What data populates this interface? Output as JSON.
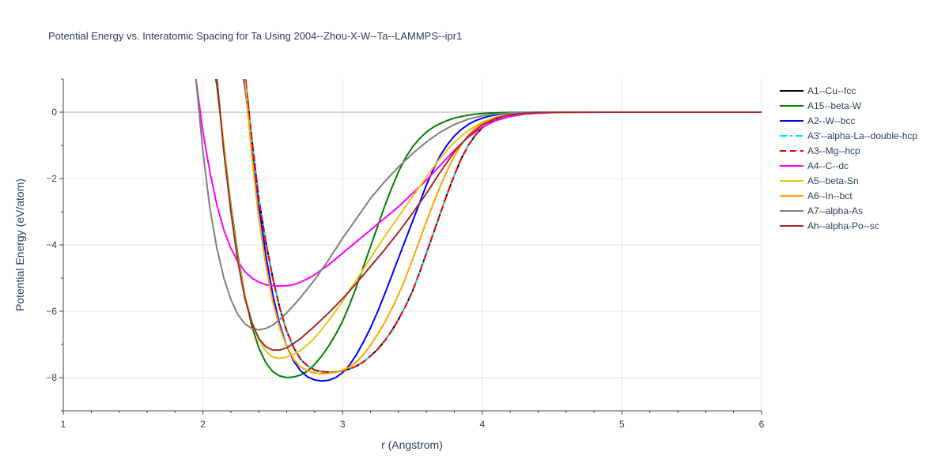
{
  "chart_data": {
    "type": "line",
    "title": "Potential Energy vs. Interatomic Spacing for Ta Using 2004--Zhou-X-W--Ta--LAMMPS--ipr1",
    "xlabel": "r (Angstrom)",
    "ylabel": "Potential Energy (eV/atom)",
    "xlim": [
      1,
      6
    ],
    "ylim": [
      -9,
      1
    ],
    "xticks": [
      1,
      2,
      3,
      4,
      5,
      6
    ],
    "yticks": [
      0,
      -2,
      -4,
      -6,
      -8
    ],
    "xtick_labels": [
      "1",
      "2",
      "3",
      "4",
      "5",
      "6"
    ],
    "ytick_labels": [
      "0",
      "−2",
      "−4",
      "−6",
      "−8"
    ],
    "grid": true,
    "legend_position": "right",
    "series": [
      {
        "name": "A1--Cu--fcc",
        "color": "#000000",
        "dash": "solid",
        "x": [
          2.3,
          2.35,
          2.4,
          2.45,
          2.5,
          2.55,
          2.6,
          2.65,
          2.7,
          2.75,
          2.8,
          2.85,
          2.9,
          2.95,
          3.0,
          3.05,
          3.1,
          3.15,
          3.2,
          3.25,
          3.3,
          3.35,
          3.4,
          3.45,
          3.5,
          3.55,
          3.6,
          3.65,
          3.7,
          3.75,
          3.8,
          3.85,
          3.9,
          3.95,
          4.0,
          4.05,
          4.1,
          4.15,
          4.2,
          4.25,
          4.3,
          4.35,
          4.4,
          4.45,
          4.5,
          4.55,
          4.6,
          4.7,
          4.8,
          5.0,
          5.5,
          6.0
        ],
        "y": [
          1.2,
          -0.8,
          -2.6,
          -3.9,
          -5.0,
          -5.9,
          -6.6,
          -7.1,
          -7.45,
          -7.65,
          -7.77,
          -7.82,
          -7.84,
          -7.83,
          -7.8,
          -7.74,
          -7.65,
          -7.52,
          -7.35,
          -7.15,
          -6.9,
          -6.6,
          -6.25,
          -5.85,
          -5.4,
          -4.85,
          -4.25,
          -3.65,
          -3.05,
          -2.45,
          -1.9,
          -1.4,
          -1.0,
          -0.7,
          -0.47,
          -0.31,
          -0.2,
          -0.13,
          -0.08,
          -0.05,
          -0.03,
          -0.02,
          -0.012,
          -0.007,
          -0.004,
          -0.002,
          -0.001,
          0,
          0,
          0,
          0,
          0
        ]
      },
      {
        "name": "A15--beta-W",
        "color": "#008000",
        "dash": "solid",
        "x": [
          2.0,
          2.05,
          2.1,
          2.15,
          2.2,
          2.25,
          2.3,
          2.35,
          2.4,
          2.45,
          2.5,
          2.55,
          2.6,
          2.65,
          2.7,
          2.75,
          2.8,
          2.85,
          2.9,
          2.95,
          3.0,
          3.05,
          3.1,
          3.15,
          3.2,
          3.25,
          3.3,
          3.35,
          3.4,
          3.45,
          3.5,
          3.55,
          3.6,
          3.65,
          3.7,
          3.75,
          3.8,
          3.85,
          3.9,
          3.95,
          4.0,
          4.05,
          4.1,
          4.15,
          4.2,
          4.3,
          4.4,
          4.5,
          4.6,
          4.8,
          5.0,
          5.5,
          6.0
        ],
        "y": [
          3.0,
          2.0,
          0.8,
          -1.0,
          -2.8,
          -4.3,
          -5.5,
          -6.45,
          -7.1,
          -7.55,
          -7.82,
          -7.95,
          -8.0,
          -7.98,
          -7.92,
          -7.8,
          -7.6,
          -7.35,
          -7.05,
          -6.7,
          -6.3,
          -5.8,
          -5.25,
          -4.65,
          -4.05,
          -3.45,
          -2.85,
          -2.3,
          -1.8,
          -1.38,
          -1.05,
          -0.8,
          -0.6,
          -0.45,
          -0.34,
          -0.25,
          -0.18,
          -0.13,
          -0.09,
          -0.06,
          -0.04,
          -0.028,
          -0.02,
          -0.014,
          -0.01,
          -0.005,
          -0.002,
          -0.001,
          0,
          0,
          0,
          0,
          0
        ]
      },
      {
        "name": "A2--W--bcc",
        "color": "#0000ff",
        "dash": "solid",
        "x": [
          2.2,
          2.25,
          2.3,
          2.35,
          2.4,
          2.45,
          2.5,
          2.55,
          2.6,
          2.65,
          2.7,
          2.75,
          2.8,
          2.85,
          2.9,
          2.95,
          3.0,
          3.05,
          3.1,
          3.15,
          3.2,
          3.25,
          3.3,
          3.35,
          3.4,
          3.45,
          3.5,
          3.55,
          3.6,
          3.65,
          3.7,
          3.75,
          3.8,
          3.85,
          3.9,
          3.95,
          4.0,
          4.05,
          4.1,
          4.15,
          4.2,
          4.3,
          4.4,
          4.5,
          4.6,
          4.8,
          5.0,
          5.5,
          6.0
        ],
        "y": [
          3.0,
          2.0,
          0.8,
          -1.0,
          -2.8,
          -4.3,
          -5.5,
          -6.4,
          -7.05,
          -7.5,
          -7.8,
          -7.98,
          -8.07,
          -8.1,
          -8.08,
          -8.0,
          -7.85,
          -7.62,
          -7.3,
          -6.92,
          -6.5,
          -6.02,
          -5.5,
          -4.95,
          -4.4,
          -3.85,
          -3.3,
          -2.75,
          -2.2,
          -1.72,
          -1.3,
          -0.98,
          -0.72,
          -0.52,
          -0.37,
          -0.26,
          -0.18,
          -0.12,
          -0.08,
          -0.05,
          -0.035,
          -0.015,
          -0.006,
          -0.002,
          0,
          0,
          0,
          0,
          0
        ]
      },
      {
        "name": "A3'--alpha-La--double-hcp",
        "color": "#00e5ee",
        "dash": "dashdot",
        "x": [
          2.3,
          2.35,
          2.4,
          2.45,
          2.5,
          2.55,
          2.6,
          2.65,
          2.7,
          2.75,
          2.8,
          2.85,
          2.9,
          2.95,
          3.0,
          3.05,
          3.1,
          3.15,
          3.2,
          3.25,
          3.3,
          3.35,
          3.4,
          3.45,
          3.5,
          3.55,
          3.6,
          3.65,
          3.7,
          3.75,
          3.8,
          3.85,
          3.9,
          3.95,
          4.0,
          4.05,
          4.1,
          4.15,
          4.2,
          4.25,
          4.3,
          4.35,
          4.4,
          4.45,
          4.5,
          4.55,
          4.6,
          4.7,
          4.8,
          5.0,
          5.5,
          6.0
        ],
        "y": [
          1.2,
          -0.8,
          -2.6,
          -3.9,
          -5.0,
          -5.9,
          -6.6,
          -7.1,
          -7.45,
          -7.65,
          -7.77,
          -7.82,
          -7.84,
          -7.83,
          -7.8,
          -7.74,
          -7.65,
          -7.52,
          -7.35,
          -7.15,
          -6.9,
          -6.6,
          -6.25,
          -5.85,
          -5.4,
          -4.85,
          -4.25,
          -3.65,
          -3.05,
          -2.45,
          -1.9,
          -1.4,
          -1.0,
          -0.7,
          -0.47,
          -0.31,
          -0.2,
          -0.13,
          -0.08,
          -0.05,
          -0.03,
          -0.02,
          -0.012,
          -0.007,
          -0.004,
          -0.002,
          -0.001,
          0,
          0,
          0,
          0,
          0
        ]
      },
      {
        "name": "A3--Mg--hcp",
        "color": "#ff0000",
        "dash": "dash",
        "x": [
          2.3,
          2.35,
          2.4,
          2.45,
          2.5,
          2.55,
          2.6,
          2.65,
          2.7,
          2.75,
          2.8,
          2.85,
          2.9,
          2.95,
          3.0,
          3.05,
          3.1,
          3.15,
          3.2,
          3.25,
          3.3,
          3.35,
          3.4,
          3.45,
          3.5,
          3.55,
          3.6,
          3.65,
          3.7,
          3.75,
          3.8,
          3.85,
          3.9,
          3.95,
          4.0,
          4.05,
          4.1,
          4.15,
          4.2,
          4.25,
          4.3,
          4.35,
          4.4,
          4.45,
          4.5,
          4.55,
          4.6,
          4.7,
          4.8,
          5.0,
          5.5,
          6.0
        ],
        "y": [
          1.2,
          -0.8,
          -2.6,
          -3.9,
          -5.0,
          -5.9,
          -6.6,
          -7.1,
          -7.45,
          -7.65,
          -7.77,
          -7.82,
          -7.84,
          -7.83,
          -7.8,
          -7.74,
          -7.65,
          -7.52,
          -7.35,
          -7.15,
          -6.9,
          -6.6,
          -6.25,
          -5.85,
          -5.4,
          -4.85,
          -4.25,
          -3.65,
          -3.05,
          -2.45,
          -1.9,
          -1.4,
          -1.0,
          -0.7,
          -0.47,
          -0.31,
          -0.2,
          -0.13,
          -0.08,
          -0.05,
          -0.03,
          -0.02,
          -0.012,
          -0.007,
          -0.004,
          -0.002,
          -0.001,
          0,
          0,
          0,
          0,
          0
        ]
      },
      {
        "name": "A4--C--dc",
        "color": "#ff00ff",
        "dash": "solid",
        "x": [
          1.95,
          2.0,
          2.05,
          2.1,
          2.15,
          2.2,
          2.25,
          2.3,
          2.35,
          2.4,
          2.45,
          2.5,
          2.55,
          2.6,
          2.65,
          2.7,
          2.75,
          2.8,
          2.9,
          3.0,
          3.1,
          3.2,
          3.3,
          3.4,
          3.5,
          3.6,
          3.7,
          3.8,
          3.9,
          4.0,
          4.1,
          4.2,
          4.3,
          4.4,
          4.5,
          4.6,
          4.8,
          5.0,
          5.5,
          6.0
        ],
        "y": [
          1.0,
          -0.6,
          -1.8,
          -2.8,
          -3.55,
          -4.1,
          -4.5,
          -4.8,
          -5.0,
          -5.12,
          -5.2,
          -5.23,
          -5.24,
          -5.23,
          -5.2,
          -5.12,
          -5.02,
          -4.9,
          -4.6,
          -4.25,
          -3.9,
          -3.55,
          -3.2,
          -2.85,
          -2.45,
          -2.05,
          -1.6,
          -1.15,
          -0.75,
          -0.45,
          -0.25,
          -0.13,
          -0.06,
          -0.03,
          -0.015,
          -0.007,
          -0.002,
          0,
          0,
          0
        ]
      },
      {
        "name": "A5--beta-Sn",
        "color": "#e6c619",
        "dash": "solid",
        "x": [
          2.05,
          2.1,
          2.15,
          2.2,
          2.25,
          2.3,
          2.35,
          2.4,
          2.45,
          2.5,
          2.55,
          2.6,
          2.65,
          2.7,
          2.75,
          2.8,
          2.85,
          2.9,
          2.95,
          3.0,
          3.1,
          3.2,
          3.3,
          3.4,
          3.5,
          3.6,
          3.7,
          3.8,
          3.9,
          4.0,
          4.1,
          4.2,
          4.3,
          4.4,
          4.5,
          4.6,
          4.8,
          5.0,
          5.5,
          6.0
        ],
        "y": [
          3.0,
          1.0,
          -1.0,
          -2.9,
          -4.4,
          -5.5,
          -6.3,
          -6.85,
          -7.2,
          -7.38,
          -7.42,
          -7.38,
          -7.3,
          -7.18,
          -7.0,
          -6.8,
          -6.55,
          -6.28,
          -6.0,
          -5.7,
          -5.05,
          -4.4,
          -3.75,
          -3.15,
          -2.55,
          -1.95,
          -1.38,
          -0.9,
          -0.55,
          -0.3,
          -0.15,
          -0.07,
          -0.03,
          -0.015,
          -0.007,
          -0.003,
          -0.001,
          0,
          0,
          0
        ]
      },
      {
        "name": "A6--In--bct",
        "color": "#ffa500",
        "dash": "solid",
        "x": [
          2.25,
          2.3,
          2.35,
          2.4,
          2.45,
          2.5,
          2.55,
          2.6,
          2.65,
          2.7,
          2.75,
          2.8,
          2.85,
          2.9,
          2.95,
          3.0,
          3.05,
          3.1,
          3.15,
          3.2,
          3.25,
          3.3,
          3.35,
          3.4,
          3.45,
          3.5,
          3.55,
          3.6,
          3.65,
          3.7,
          3.75,
          3.8,
          3.85,
          3.9,
          3.95,
          4.0,
          4.1,
          4.2,
          4.3,
          4.4,
          4.5,
          4.6,
          4.8,
          5.0,
          5.5,
          6.0
        ],
        "y": [
          3.0,
          1.0,
          -1.3,
          -3.2,
          -4.6,
          -5.7,
          -6.5,
          -7.05,
          -7.45,
          -7.68,
          -7.8,
          -7.86,
          -7.88,
          -7.87,
          -7.84,
          -7.78,
          -7.68,
          -7.52,
          -7.3,
          -7.02,
          -6.7,
          -6.35,
          -5.95,
          -5.5,
          -5.0,
          -4.45,
          -3.88,
          -3.3,
          -2.75,
          -2.22,
          -1.75,
          -1.33,
          -0.98,
          -0.7,
          -0.48,
          -0.33,
          -0.15,
          -0.07,
          -0.03,
          -0.012,
          -0.005,
          -0.002,
          0,
          0,
          0,
          0
        ]
      },
      {
        "name": "A7--alpha-As",
        "color": "#808080",
        "dash": "solid",
        "x": [
          1.95,
          2.0,
          2.05,
          2.1,
          2.15,
          2.2,
          2.25,
          2.3,
          2.35,
          2.4,
          2.45,
          2.5,
          2.55,
          2.6,
          2.65,
          2.7,
          2.8,
          2.9,
          3.0,
          3.1,
          3.2,
          3.3,
          3.4,
          3.5,
          3.6,
          3.7,
          3.8,
          3.9,
          4.0,
          4.1,
          4.2,
          4.3,
          4.4,
          4.5,
          4.6,
          4.8,
          5.0,
          5.5,
          6.0
        ],
        "y": [
          1.0,
          -1.2,
          -2.9,
          -4.1,
          -5.0,
          -5.65,
          -6.1,
          -6.38,
          -6.52,
          -6.56,
          -6.52,
          -6.42,
          -6.25,
          -6.05,
          -5.82,
          -5.58,
          -5.05,
          -4.45,
          -3.8,
          -3.2,
          -2.6,
          -2.1,
          -1.65,
          -1.25,
          -0.9,
          -0.6,
          -0.37,
          -0.21,
          -0.11,
          -0.055,
          -0.025,
          -0.012,
          -0.005,
          -0.002,
          -0.001,
          0,
          0,
          0,
          0
        ]
      },
      {
        "name": "Ah--alpha-Po--sc",
        "color": "#a52a2a",
        "dash": "solid",
        "x": [
          2.1,
          2.15,
          2.2,
          2.25,
          2.3,
          2.35,
          2.4,
          2.45,
          2.5,
          2.55,
          2.6,
          2.65,
          2.7,
          2.8,
          2.9,
          3.0,
          3.1,
          3.2,
          3.3,
          3.4,
          3.5,
          3.6,
          3.7,
          3.8,
          3.9,
          4.0,
          4.1,
          4.2,
          4.3,
          4.4,
          4.5,
          4.6,
          4.8,
          5.0,
          5.5,
          6.0
        ],
        "y": [
          1.0,
          -1.2,
          -3.0,
          -4.5,
          -5.6,
          -6.35,
          -6.82,
          -7.07,
          -7.17,
          -7.17,
          -7.1,
          -6.97,
          -6.82,
          -6.45,
          -6.05,
          -5.62,
          -5.15,
          -4.65,
          -4.15,
          -3.62,
          -3.05,
          -2.45,
          -1.8,
          -1.2,
          -0.72,
          -0.38,
          -0.18,
          -0.08,
          -0.035,
          -0.015,
          -0.006,
          -0.002,
          0,
          0,
          0,
          0
        ]
      }
    ]
  }
}
